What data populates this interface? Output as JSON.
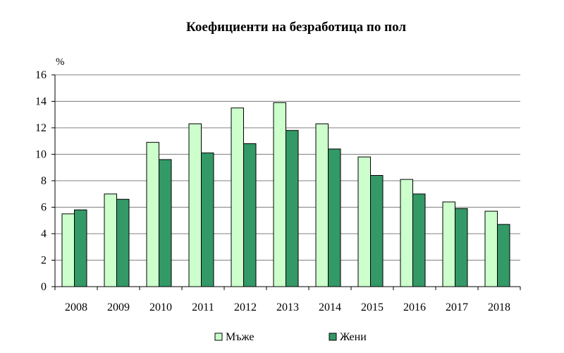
{
  "chart_data": {
    "type": "bar",
    "title": "Коефициенти на безработица по пол",
    "ylabel": "%",
    "xlabel": "",
    "ylim": [
      0,
      16
    ],
    "yticks": [
      0,
      2,
      4,
      6,
      8,
      10,
      12,
      14,
      16
    ],
    "grid": true,
    "legend_position": "bottom",
    "categories": [
      "2008",
      "2009",
      "2010",
      "2011",
      "2012",
      "2013",
      "2014",
      "2015",
      "2016",
      "2017",
      "2018"
    ],
    "series": [
      {
        "name": "Мъже",
        "color": "#ccffcc",
        "values": [
          5.5,
          7.0,
          10.9,
          12.3,
          13.5,
          13.9,
          12.3,
          9.8,
          8.1,
          6.4,
          5.7
        ]
      },
      {
        "name": "Жени",
        "color": "#339966",
        "values": [
          5.8,
          6.6,
          9.6,
          10.1,
          10.8,
          11.8,
          10.4,
          8.4,
          7.0,
          5.9,
          4.7
        ]
      }
    ]
  }
}
